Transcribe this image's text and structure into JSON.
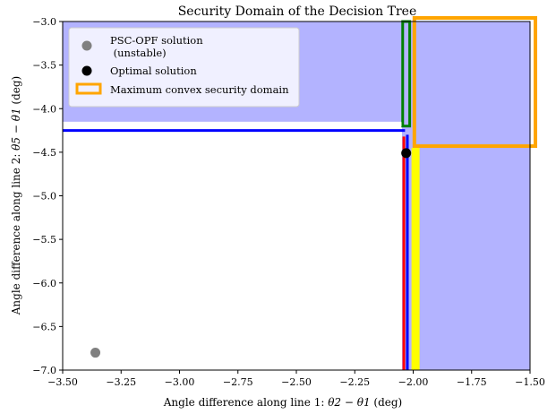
{
  "chart_data": {
    "type": "region",
    "title": "Security Domain of the Decision Tree",
    "xlabel_prefix": "Angle difference along line 1: ",
    "xlabel_math": "θ2 − θ1",
    "xlabel_suffix": " (deg)",
    "ylabel_prefix": "Angle difference along line 2: ",
    "ylabel_math": "θ5 − θ1",
    "ylabel_suffix": " (deg)",
    "xlim": [
      -3.5,
      -1.5
    ],
    "ylim": [
      -7.0,
      -3.0
    ],
    "xticks": [
      -3.5,
      -3.25,
      -3.0,
      -2.75,
      -2.5,
      -2.25,
      -2.0,
      -1.75,
      -1.5
    ],
    "yticks": [
      -7.0,
      -6.5,
      -6.0,
      -5.5,
      -5.0,
      -4.5,
      -4.0,
      -3.5,
      -3.0
    ],
    "xtick_labels": [
      "−3.50",
      "−3.25",
      "−3.00",
      "−2.75",
      "−2.50",
      "−2.25",
      "−2.00",
      "−1.75",
      "−1.50"
    ],
    "ytick_labels": [
      "−7.0",
      "−6.5",
      "−6.0",
      "−5.5",
      "−5.0",
      "−4.5",
      "−4.0",
      "−3.5",
      "−3.0"
    ],
    "secure_region_color": "#b3b3ff",
    "secure_regions": [
      {
        "name": "upper region",
        "x": [
          -3.5,
          -1.5
        ],
        "y": [
          -4.15,
          -3.0
        ]
      },
      {
        "name": "right region",
        "x": [
          -2.048,
          -1.5
        ],
        "y": [
          -7.0,
          -3.0
        ]
      }
    ],
    "boundary_lines": [
      {
        "color": "#ffff00",
        "kind": "vertical",
        "x": -1.99,
        "y": [
          -7.0,
          -4.45
        ],
        "width": 9
      },
      {
        "color": "#0000ff",
        "kind": "vertical",
        "x": -2.025,
        "y": [
          -7.0,
          -4.3
        ],
        "width": 3
      },
      {
        "color": "#ff0000",
        "kind": "vertical",
        "x": -2.04,
        "y": [
          -7.0,
          -4.32
        ],
        "width": 3
      },
      {
        "color": "#008000",
        "kind": "rect",
        "x": [
          -2.045,
          -2.015
        ],
        "y": [
          -4.2,
          -3.0
        ],
        "width": 3
      },
      {
        "color": "#0000ff",
        "kind": "horizontal",
        "y": -4.25,
        "x": [
          -3.5,
          -2.035
        ],
        "width": 3
      },
      {
        "color": "#ffffff",
        "kind": "horizontal",
        "y": -4.18,
        "x": [
          -3.5,
          -2.05
        ],
        "width": 5
      }
    ],
    "convex_domain": {
      "label": "Maximum convex security domain",
      "color": "#ffa500",
      "x": [
        -1.995,
        -1.5
      ],
      "y": [
        -4.43,
        -3.0
      ]
    },
    "points": [
      {
        "label_lines": [
          "PSC-OPF solution",
          " (unstable)"
        ],
        "x": -3.36,
        "y": -6.8,
        "color": "#808080"
      },
      {
        "label_lines": [
          "Optimal solution"
        ],
        "x": -2.03,
        "y": -4.51,
        "color": "#000000"
      }
    ],
    "legend": {
      "location": "upper-left"
    },
    "grid": false
  }
}
